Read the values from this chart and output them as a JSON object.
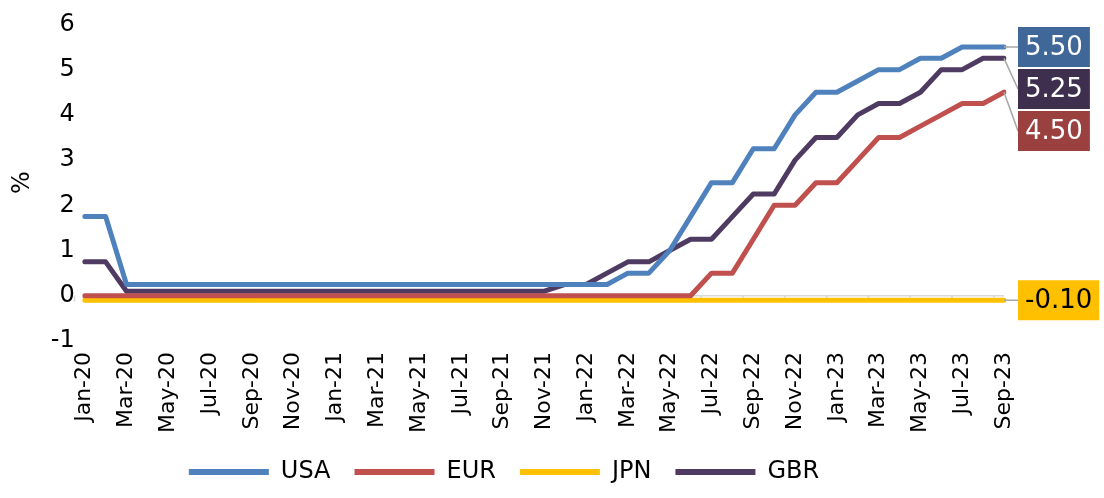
{
  "chart_data": {
    "type": "line",
    "ylabel": "%",
    "categories": [
      "Jan-20",
      null,
      "Mar-20",
      null,
      "May-20",
      null,
      "Jul-20",
      null,
      "Sep-20",
      null,
      "Nov-20",
      null,
      "Jan-21",
      null,
      "Mar-21",
      null,
      "May-21",
      null,
      "Jul-21",
      null,
      "Sep-21",
      null,
      "Nov-21",
      null,
      "Jan-22",
      null,
      "Mar-22",
      null,
      "May-22",
      null,
      "Jul-22",
      null,
      "Sep-22",
      null,
      "Nov-22",
      null,
      "Jan-23",
      null,
      "Mar-23",
      null,
      "May-23",
      null,
      "Jul-23",
      null,
      "Sep-23"
    ],
    "series": [
      {
        "name": "USA",
        "color": "#4f81bd",
        "values": [
          1.75,
          1.75,
          0.25,
          0.25,
          0.25,
          0.25,
          0.25,
          0.25,
          0.25,
          0.25,
          0.25,
          0.25,
          0.25,
          0.25,
          0.25,
          0.25,
          0.25,
          0.25,
          0.25,
          0.25,
          0.25,
          0.25,
          0.25,
          0.25,
          0.25,
          0.25,
          0.5,
          0.5,
          1.0,
          1.75,
          2.5,
          2.5,
          3.25,
          3.25,
          4.0,
          4.5,
          4.5,
          4.75,
          5.0,
          5.0,
          5.25,
          5.25,
          5.5,
          5.5,
          5.5
        ],
        "value_labels": [
          null,
          null,
          null,
          null,
          null,
          null,
          null,
          null,
          null,
          null,
          null,
          null,
          null,
          null,
          null,
          null,
          null,
          null,
          null,
          null,
          null,
          null,
          null,
          null,
          null,
          null,
          null,
          null,
          null,
          null,
          null,
          null,
          null,
          null,
          null,
          null,
          null,
          null,
          null,
          null,
          null,
          null,
          null,
          null,
          "5.50"
        ]
      },
      {
        "name": "EUR",
        "color": "#c0504d",
        "values": [
          0,
          0,
          0,
          0,
          0,
          0,
          0,
          0,
          0,
          0,
          0,
          0,
          0,
          0,
          0,
          0,
          0,
          0,
          0,
          0,
          0,
          0,
          0,
          0,
          0,
          0,
          0,
          0,
          0,
          0,
          0.5,
          0.5,
          1.25,
          2.0,
          2.0,
          2.5,
          2.5,
          3.0,
          3.5,
          3.5,
          3.75,
          4.0,
          4.25,
          4.25,
          4.5
        ],
        "value_labels": [
          null,
          null,
          null,
          null,
          null,
          null,
          null,
          null,
          null,
          null,
          null,
          null,
          null,
          null,
          null,
          null,
          null,
          null,
          null,
          null,
          null,
          null,
          null,
          null,
          null,
          null,
          null,
          null,
          null,
          null,
          null,
          null,
          null,
          null,
          null,
          null,
          null,
          null,
          null,
          null,
          null,
          null,
          null,
          null,
          "4.50"
        ]
      },
      {
        "name": "JPN",
        "color": "#ffc000",
        "values": [
          -0.1,
          -0.1,
          -0.1,
          -0.1,
          -0.1,
          -0.1,
          -0.1,
          -0.1,
          -0.1,
          -0.1,
          -0.1,
          -0.1,
          -0.1,
          -0.1,
          -0.1,
          -0.1,
          -0.1,
          -0.1,
          -0.1,
          -0.1,
          -0.1,
          -0.1,
          -0.1,
          -0.1,
          -0.1,
          -0.1,
          -0.1,
          -0.1,
          -0.1,
          -0.1,
          -0.1,
          -0.1,
          -0.1,
          -0.1,
          -0.1,
          -0.1,
          -0.1,
          -0.1,
          -0.1,
          -0.1,
          -0.1,
          -0.1,
          -0.1,
          -0.1,
          -0.1
        ],
        "value_labels": [
          null,
          null,
          null,
          null,
          null,
          null,
          null,
          null,
          null,
          null,
          null,
          null,
          null,
          null,
          null,
          null,
          null,
          null,
          null,
          null,
          null,
          null,
          null,
          null,
          null,
          null,
          null,
          null,
          null,
          null,
          null,
          null,
          null,
          null,
          null,
          null,
          null,
          null,
          null,
          null,
          null,
          null,
          null,
          null,
          "-0.10"
        ]
      },
      {
        "name": "GBR",
        "color": "#4f3b62",
        "values": [
          0.75,
          0.75,
          0.1,
          0.1,
          0.1,
          0.1,
          0.1,
          0.1,
          0.1,
          0.1,
          0.1,
          0.1,
          0.1,
          0.1,
          0.1,
          0.1,
          0.1,
          0.1,
          0.1,
          0.1,
          0.1,
          0.1,
          0.1,
          0.25,
          0.25,
          0.5,
          0.75,
          0.75,
          1.0,
          1.25,
          1.25,
          1.75,
          2.25,
          2.25,
          3.0,
          3.5,
          3.5,
          4.0,
          4.25,
          4.25,
          4.5,
          5.0,
          5.0,
          5.25,
          5.25
        ],
        "value_labels": [
          null,
          null,
          null,
          null,
          null,
          null,
          null,
          null,
          null,
          null,
          null,
          null,
          null,
          null,
          null,
          null,
          null,
          null,
          null,
          null,
          null,
          null,
          null,
          null,
          null,
          null,
          null,
          null,
          null,
          null,
          null,
          null,
          null,
          null,
          null,
          null,
          null,
          null,
          null,
          null,
          null,
          null,
          null,
          null,
          "5.25"
        ]
      }
    ],
    "ylim": [
      -1,
      6
    ],
    "yticks": [
      -1,
      0,
      1,
      2,
      3,
      4,
      5,
      6
    ],
    "grid": false,
    "legend": "bottom",
    "marker": "none",
    "line_style": "solid"
  }
}
